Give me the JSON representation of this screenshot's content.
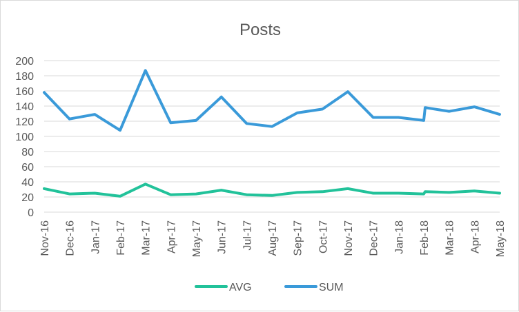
{
  "chart_data": {
    "type": "line",
    "title": "Posts",
    "xlabel": "",
    "ylabel": "",
    "ylim": [
      0,
      200
    ],
    "y_ticks": [
      0,
      20,
      40,
      60,
      80,
      100,
      120,
      140,
      160,
      180,
      200
    ],
    "grid": true,
    "legend_position": "bottom",
    "categories": [
      "Nov-16",
      "Dec-16",
      "Jan-17",
      "Feb-17",
      "Mar-17",
      "Apr-17",
      "May-17",
      "Jun-17",
      "Jul-17",
      "Aug-17",
      "Sep-17",
      "Oct-17",
      "Nov-17",
      "Dec-17",
      "Jan-18",
      "Feb-18",
      "Feb-18",
      "Mar-18",
      "Apr-18",
      "May-18"
    ],
    "axis_category_labels": [
      "Nov-16",
      "Dec-16",
      "Jan-17",
      "Feb-17",
      "Mar-17",
      "Apr-17",
      "May-17",
      "Jun-17",
      "Jul-17",
      "Aug-17",
      "Sep-17",
      "Oct-17",
      "Nov-17",
      "Dec-17",
      "Jan-18",
      "Feb-18",
      "Mar-18",
      "Apr-18",
      "May-18"
    ],
    "series": [
      {
        "name": "AVG",
        "color": "#22c29a",
        "values": [
          31,
          24,
          25,
          21,
          37,
          23,
          24,
          29,
          23,
          22,
          26,
          27,
          31,
          25,
          25,
          24,
          27,
          26,
          28,
          25
        ]
      },
      {
        "name": "SUM",
        "color": "#3a9ad9",
        "values": [
          158,
          123,
          129,
          108,
          187,
          118,
          121,
          152,
          117,
          113,
          131,
          136,
          159,
          125,
          125,
          121,
          138,
          133,
          139,
          129
        ]
      }
    ]
  },
  "colors": {
    "gridline": "#d9d9d9",
    "text": "#595959",
    "border": "#d9d9d9"
  }
}
